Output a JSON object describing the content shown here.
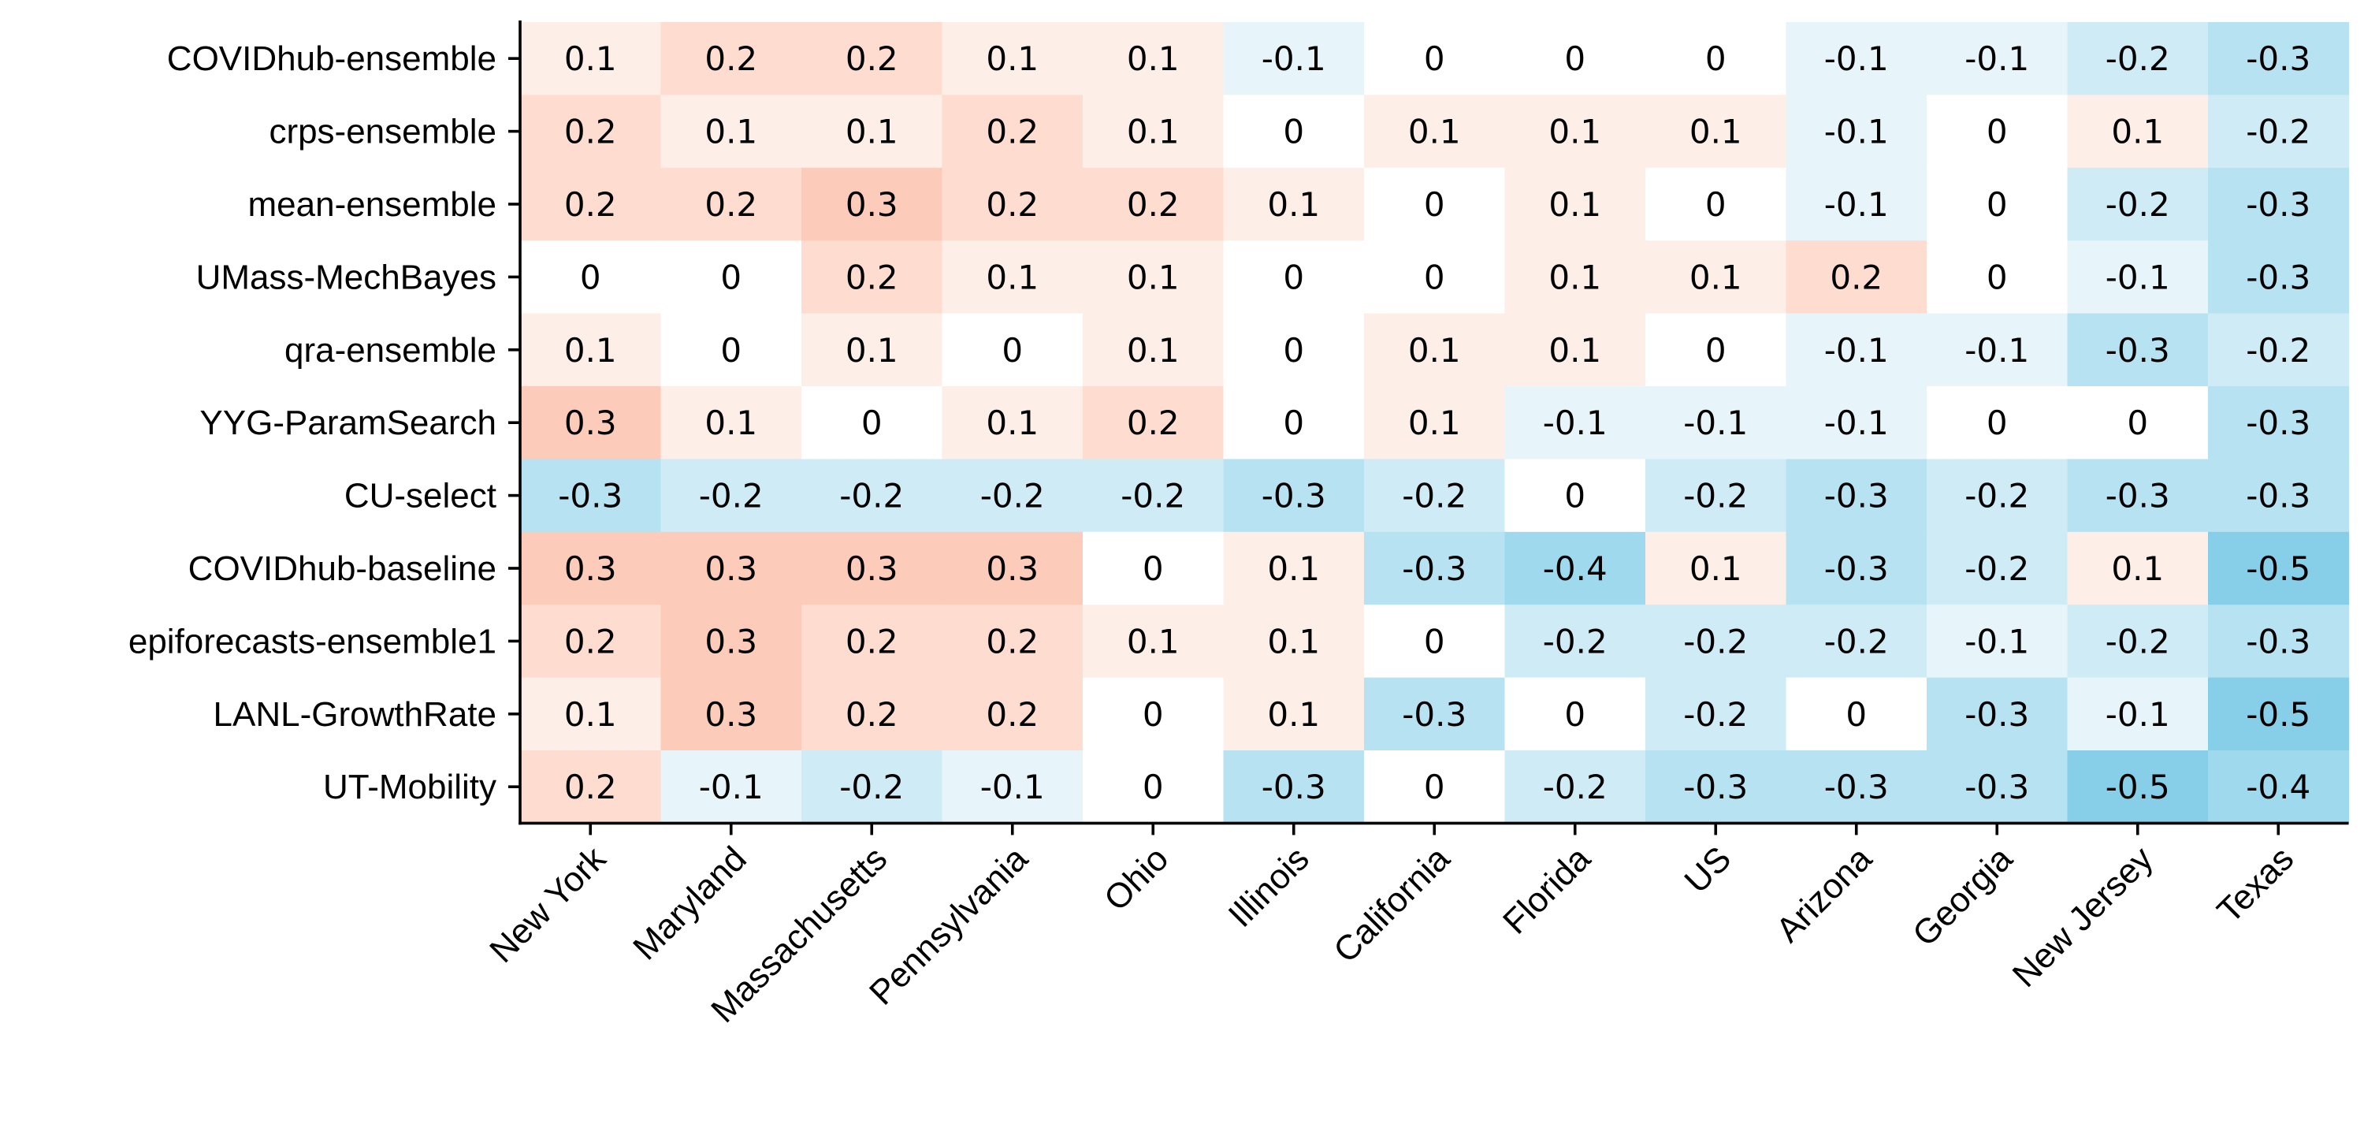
{
  "chart_data": {
    "type": "heatmap",
    "title": "",
    "xlabel": "",
    "ylabel": "",
    "rows": [
      "COVIDhub-ensemble",
      "crps-ensemble",
      "mean-ensemble",
      "UMass-MechBayes",
      "qra-ensemble",
      "YYG-ParamSearch",
      "CU-select",
      "COVIDhub-baseline",
      "epiforecasts-ensemble1",
      "LANL-GrowthRate",
      "UT-Mobility"
    ],
    "columns": [
      "New York",
      "Maryland",
      "Massachusetts",
      "Pennsylvania",
      "Ohio",
      "Illinois",
      "California",
      "Florida",
      "US",
      "Arizona",
      "Georgia",
      "New Jersey",
      "Texas"
    ],
    "values": [
      [
        0.1,
        0.2,
        0.2,
        0.1,
        0.1,
        -0.1,
        0,
        0,
        0,
        -0.1,
        -0.1,
        -0.2,
        -0.3
      ],
      [
        0.2,
        0.1,
        0.1,
        0.2,
        0.1,
        0,
        0.1,
        0.1,
        0.1,
        -0.1,
        0,
        0.1,
        -0.2
      ],
      [
        0.2,
        0.2,
        0.3,
        0.2,
        0.2,
        0.1,
        0,
        0.1,
        0,
        -0.1,
        0,
        -0.2,
        -0.3
      ],
      [
        0,
        0,
        0.2,
        0.1,
        0.1,
        0,
        0,
        0.1,
        0.1,
        0.2,
        0,
        -0.1,
        -0.3
      ],
      [
        0.1,
        0,
        0.1,
        0,
        0.1,
        0,
        0.1,
        0.1,
        0,
        -0.1,
        -0.1,
        -0.3,
        -0.2
      ],
      [
        0.3,
        0.1,
        0,
        0.1,
        0.2,
        0,
        0.1,
        -0.1,
        -0.1,
        -0.1,
        0,
        0,
        -0.3
      ],
      [
        -0.3,
        -0.2,
        -0.2,
        -0.2,
        -0.2,
        -0.3,
        -0.2,
        0,
        -0.2,
        -0.3,
        -0.2,
        -0.3,
        -0.3
      ],
      [
        0.3,
        0.3,
        0.3,
        0.3,
        0,
        0.1,
        -0.3,
        -0.4,
        0.1,
        -0.3,
        -0.2,
        0.1,
        -0.5
      ],
      [
        0.2,
        0.3,
        0.2,
        0.2,
        0.1,
        0.1,
        0,
        -0.2,
        -0.2,
        -0.2,
        -0.1,
        -0.2,
        -0.3
      ],
      [
        0.1,
        0.3,
        0.2,
        0.2,
        0,
        0.1,
        -0.3,
        0,
        -0.2,
        0,
        -0.3,
        -0.1,
        -0.5
      ],
      [
        0.2,
        -0.1,
        -0.2,
        -0.1,
        0,
        -0.3,
        0,
        -0.2,
        -0.3,
        -0.3,
        -0.3,
        -0.5,
        -0.4
      ]
    ],
    "colors": {
      "negative": "#87cfe8",
      "neutral": "#ffffff",
      "positive": "#fca88a"
    },
    "color_scale_max_abs": 0.5
  }
}
